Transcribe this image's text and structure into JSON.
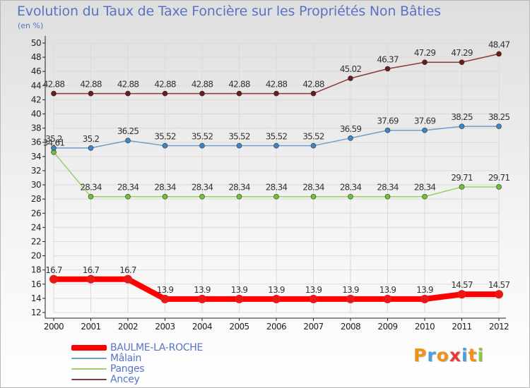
{
  "title": "Evolution du Taux de Taxe Foncière sur les Propriétés Non Bâties",
  "unit_label": "(en %)",
  "logo": {
    "text": "Proxiti",
    "colors": [
      "#f29018",
      "#4aa0d8",
      "#f29018",
      "#e83838",
      "#4aa0d8",
      "#f29018",
      "#8cc63f"
    ]
  },
  "chart_data": {
    "type": "line",
    "title": "Evolution du Taux de Taxe Foncière sur les Propriétés Non Bâties",
    "ylabel": "(en %)",
    "xlabel": "",
    "x": [
      "2000",
      "2001",
      "2002",
      "2003",
      "2004",
      "2005",
      "2006",
      "2007",
      "2008",
      "2009",
      "2010",
      "2011",
      "2012"
    ],
    "ylim": [
      12,
      50
    ],
    "yticks": [
      12,
      14,
      16,
      18,
      20,
      22,
      24,
      26,
      28,
      30,
      32,
      34,
      36,
      38,
      40,
      42,
      44,
      46,
      48,
      50
    ],
    "grid": true,
    "legend_position": "bottom-left",
    "series": [
      {
        "name": "BAULME-LA-ROCHE",
        "color": "#ff0000",
        "marker": "#e81818",
        "width": 8,
        "point": 6,
        "values": [
          16.7,
          16.7,
          16.7,
          13.9,
          13.9,
          13.9,
          13.9,
          13.9,
          13.9,
          13.9,
          13.9,
          14.57,
          14.57
        ],
        "labels": [
          "16.7",
          "16.7",
          "16.7",
          "13.9",
          "13.9",
          "13.9",
          "13.9",
          "13.9",
          "13.9",
          "13.9",
          "13.9",
          "14.57",
          "14.57"
        ]
      },
      {
        "name": "Mâlain",
        "color": "#6d9ecf",
        "marker": "#3f86c6",
        "width": 1.5,
        "point": 3.5,
        "values": [
          35.2,
          35.2,
          36.25,
          35.52,
          35.52,
          35.52,
          35.52,
          35.52,
          36.59,
          37.69,
          37.69,
          38.25,
          38.25
        ],
        "labels": [
          "35.2",
          "35.2",
          "36.25",
          "35.52",
          "35.52",
          "35.52",
          "35.52",
          "35.52",
          "36.59",
          "37.69",
          "37.69",
          "38.25",
          "38.25"
        ]
      },
      {
        "name": "Panges",
        "color": "#9ccf6a",
        "marker": "#6fc03a",
        "width": 1.5,
        "point": 3.5,
        "values": [
          34.61,
          28.34,
          28.34,
          28.34,
          28.34,
          28.34,
          28.34,
          28.34,
          28.34,
          28.34,
          28.34,
          29.71,
          29.71
        ],
        "labels": [
          "34.61",
          "28.34",
          "28.34",
          "28.34",
          "28.34",
          "28.34",
          "28.34",
          "28.34",
          "28.34",
          "28.34",
          "28.34",
          "29.71",
          "29.71"
        ]
      },
      {
        "name": "Ancey",
        "color": "#8a3a3a",
        "marker": "#6b1c1c",
        "width": 1.5,
        "point": 3.5,
        "values": [
          42.88,
          42.88,
          42.88,
          42.88,
          42.88,
          42.88,
          42.88,
          42.88,
          45.02,
          46.37,
          47.29,
          47.29,
          48.47
        ],
        "labels": [
          "42.88",
          "42.88",
          "42.88",
          "42.88",
          "42.88",
          "42.88",
          "42.88",
          "42.88",
          "45.02",
          "46.37",
          "47.29",
          "47.29",
          "48.47"
        ]
      }
    ]
  }
}
